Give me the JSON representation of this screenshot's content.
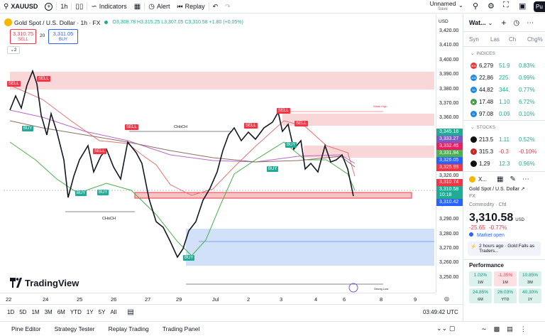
{
  "topbar": {
    "symbol": "XAUUSD",
    "interval": "1h",
    "indicators_label": "Indicators",
    "alert_label": "Alert",
    "replay_label": "Replay",
    "layout_name": "Unnamed",
    "layout_status": "Save",
    "publish_label": "Pu"
  },
  "legend": {
    "title": "Gold Spot / U.S. Dollar · 1h · FX",
    "ohlc": "O3,308.78 H3,315.25 L3,307.05 C3,310.58 +1.80 (+0.05%)",
    "sell_price": "3,310.75",
    "sell_label": "SELL",
    "spread": "20",
    "buy_price": "3,311.05",
    "buy_label": "BUY",
    "indicator_count": "2"
  },
  "price_scale": {
    "currency": "USD",
    "ticks": [
      "3,420.00",
      "3,410.00",
      "3,400.00",
      "3,390.00",
      "3,380.00",
      "3,370.00",
      "3,360.00",
      "3,350.00",
      "3,340.00",
      "3,330.00",
      "3,320.00",
      "3,310.00",
      "3,300.00",
      "3,290.00",
      "3,280.00",
      "3,270.00",
      "3,260.00",
      "3,250.00"
    ],
    "labels": [
      {
        "text": "3,345.18",
        "color": "#22ab94"
      },
      {
        "text": "3,333.27",
        "color": "#7e57c2"
      },
      {
        "text": "3,332.45",
        "color": "#e91e63"
      },
      {
        "text": "3,331.94",
        "color": "#4caf50"
      },
      {
        "text": "3,326.05",
        "color": "#2962ff"
      },
      {
        "text": "3,325.99",
        "color": "#f23645"
      },
      {
        "text": "3,310.74",
        "color": "#f23645"
      },
      {
        "text": "3,310.58",
        "color": "#22ab94"
      },
      {
        "text": "10:18",
        "color": "#22ab94"
      },
      {
        "text": "3,310.42",
        "color": "#2962ff"
      }
    ]
  },
  "time_axis": {
    "ticks": [
      "22",
      "24",
      "25",
      "26",
      "27",
      "29",
      "Jul",
      "2",
      "3",
      "4",
      "6",
      "8",
      "9"
    ]
  },
  "chart_signals": {
    "buy": "BUY",
    "sell": "SELL",
    "choch": "CHoCH",
    "weak_high": "Weak High",
    "strong_low": "Strong Low"
  },
  "watermark": "TradingView",
  "bottom_toolbar": {
    "ranges": [
      "1D",
      "5D",
      "1M",
      "3M",
      "6M",
      "YTD",
      "1Y",
      "5Y",
      "All"
    ],
    "time": "03:49:42 UTC"
  },
  "bottom_tabs": [
    "Pine Editor",
    "Strategy Tester",
    "Replay Trading",
    "Trading Panel"
  ],
  "watchlist": {
    "title": "Wat...",
    "columns": [
      "Syn",
      "Las",
      "Ch",
      "Chg%"
    ],
    "section_indices": "INDICES",
    "section_stocks": "STOCKS",
    "indices": [
      {
        "icon_color": "#e53935",
        "icon_text": "500",
        "symbol": "6,279",
        "last": "51.9",
        "chg_pct": "0.83%",
        "pos": true
      },
      {
        "icon_color": "#1e88e5",
        "icon_text": "100",
        "symbol": "22,86",
        "last": "225.",
        "chg_pct": "0.99%",
        "pos": true
      },
      {
        "icon_color": "#1e88e5",
        "icon_text": "30",
        "symbol": "44,82",
        "last": "344.",
        "chg_pct": "0.77%",
        "pos": true
      },
      {
        "icon_color": "#43a047",
        "icon_text": "▶",
        "symbol": "17.48",
        "last": "1.10",
        "chg_pct": "6.72%",
        "pos": true
      },
      {
        "icon_color": "#1e88e5",
        "icon_text": "D",
        "symbol": "97.08",
        "last": "0.09",
        "chg_pct": "0.10%",
        "pos": true
      }
    ],
    "stocks": [
      {
        "icon_color": "#111111",
        "icon_text": "",
        "symbol": "213.5",
        "last": "1.11",
        "chg_pct": "0.52%",
        "pos": true
      },
      {
        "icon_color": "#c62828",
        "icon_text": "T",
        "symbol": "315.3",
        "last": "-0.3",
        "chg_pct": "-0.10%",
        "pos": false
      },
      {
        "icon_color": "#111111",
        "icon_text": "",
        "symbol": "1,29",
        "last": "12.3",
        "chg_pct": "0.96%",
        "pos": true
      }
    ]
  },
  "details": {
    "symbol": "X...",
    "full_name": "Gold Spot / U.S. Dollar",
    "exchange": "FX",
    "category": "Commodity · Cfd",
    "price": "3,310.58",
    "currency": "USD",
    "change": "-25.65",
    "change_pct": "-0.77%",
    "market_status": "Market open",
    "news": "2 hours ago · Gold Falls as Traders...",
    "performance_title": "Performance",
    "performance": [
      {
        "value": "1.02%",
        "period": "1W",
        "pos": true
      },
      {
        "value": "-1.35%",
        "period": "1M",
        "pos": false
      },
      {
        "value": "10.85%",
        "period": "3M",
        "pos": true
      },
      {
        "value": "24.85%",
        "period": "6M",
        "pos": true
      },
      {
        "value": "26.03%",
        "period": "YTD",
        "pos": true
      },
      {
        "value": "40.30%",
        "period": "1Y",
        "pos": true
      }
    ]
  },
  "colors": {
    "up": "#22ab94",
    "down": "#f23645",
    "accent": "#2962ff"
  }
}
